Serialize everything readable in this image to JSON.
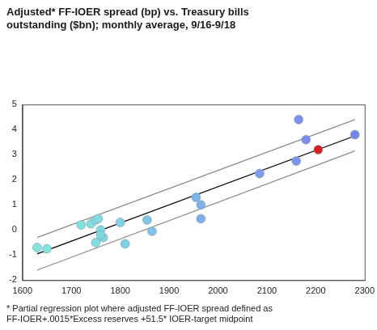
{
  "chart_data": {
    "type": "scatter",
    "title": [
      "Adjusted* FF-IOER spread (bp) vs. Treasury bills",
      "outstanding ($bn); monthly average, 9/16-9/18"
    ],
    "annotation": [
      "* Partial regression plot where adjusted FF-IOER spread defined as",
      "FF-IOER+.0015*Excess reserves +51.5* IOER-target midpoint"
    ],
    "xlim": [
      1600,
      2300
    ],
    "xticks": [
      1600,
      1700,
      1800,
      1900,
      2000,
      2100,
      2200,
      2300
    ],
    "ylim": [
      -2,
      5
    ],
    "yticks": [
      -2,
      -1,
      0,
      1,
      2,
      3,
      4,
      5
    ],
    "grid": false,
    "series": [
      {
        "type": "scatter",
        "marker": "circle",
        "x": [
          1630,
          1650,
          1720,
          1740,
          1750,
          1755,
          1750,
          1760,
          1765,
          1760,
          1800,
          1810,
          1855,
          1865,
          1955,
          1965,
          1965,
          2085,
          2160,
          2165,
          2180,
          2205,
          2280
        ],
        "values": [
          -0.7,
          -0.75,
          0.2,
          0.25,
          0.4,
          0.45,
          -0.5,
          0.0,
          -0.3,
          -0.2,
          0.3,
          -0.55,
          0.4,
          -0.05,
          1.3,
          1.0,
          0.45,
          2.25,
          2.75,
          4.4,
          3.6,
          3.2,
          3.8
        ],
        "colors": [
          "#80e6df",
          "#80e4df",
          "#80e2e0",
          "#80e0e0",
          "#80dee1",
          "#80dce1",
          "#80dce1",
          "#80dae2",
          "#80d8e2",
          "#80d8e2",
          "#80d2e3",
          "#80cfe4",
          "#80c6e6",
          "#80c2e7",
          "#80b2ea",
          "#80aeeb",
          "#80aeeb",
          "#7d9ced",
          "#7b92ee",
          "#7a8fee",
          "#7b8dee",
          "#d62020",
          "#7384e8"
        ]
      },
      {
        "type": "line",
        "line_style": "solid",
        "color": "#000000",
        "x": [
          1630,
          2280
        ],
        "values": [
          -0.95,
          3.75
        ]
      },
      {
        "type": "line",
        "line_style": "solid",
        "color": "#8c8c8c",
        "x": [
          1630,
          2280
        ],
        "values": [
          -0.3,
          4.4
        ]
      },
      {
        "type": "line",
        "line_style": "solid",
        "color": "#8c8c8c",
        "x": [
          1630,
          2280
        ],
        "values": [
          -1.6,
          3.15
        ]
      }
    ]
  }
}
